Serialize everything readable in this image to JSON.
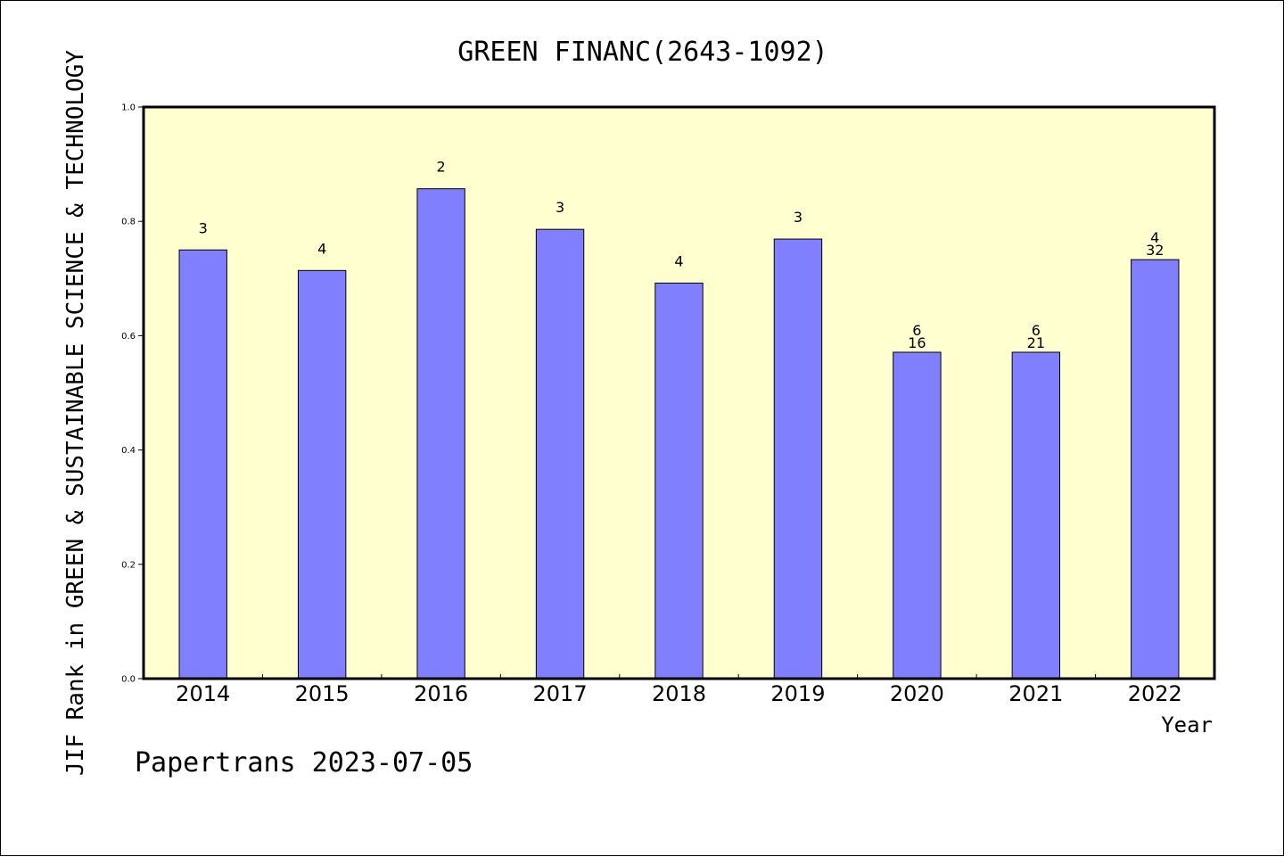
{
  "chart_data": {
    "type": "bar",
    "title": "GREEN FINANC(2643-1092)",
    "xlabel": "Year",
    "ylabel": "JIF Rank in GREEN & SUSTAINABLE SCIENCE & TECHNOLOGY",
    "ylim": [
      0,
      1.0
    ],
    "yticks": [
      "0.0",
      "0.2",
      "0.4",
      "0.6",
      "0.8",
      "1.0"
    ],
    "categories": [
      "2014",
      "2015",
      "2016",
      "2017",
      "2018",
      "2019",
      "2020",
      "2021",
      "2022"
    ],
    "values": [
      0.75,
      0.714,
      0.857,
      0.786,
      0.692,
      0.769,
      0.571,
      0.571,
      0.733
    ],
    "bar_labels": [
      [
        "3"
      ],
      [
        "4"
      ],
      [
        "2"
      ],
      [
        "3"
      ],
      [
        "4"
      ],
      [
        "3"
      ],
      [
        "6",
        "16"
      ],
      [
        "6",
        "21"
      ],
      [
        "4",
        "32"
      ]
    ],
    "grid": false,
    "colors": {
      "bar_fill": "#8080ff",
      "plot_background": "#ffffd0"
    }
  },
  "footer": "Papertrans 2023-07-05"
}
